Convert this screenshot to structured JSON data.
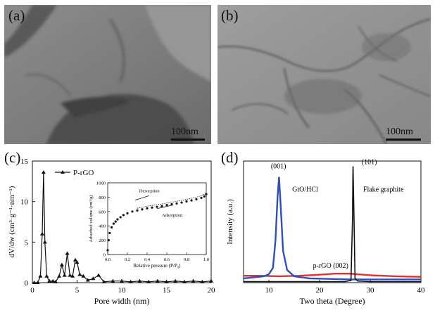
{
  "panels": {
    "a": {
      "label": "(a)",
      "scale_bar": "100nm"
    },
    "b": {
      "label": "(b)",
      "scale_bar": "100nm"
    },
    "c": {
      "label": "(c)"
    },
    "d": {
      "label": "(d)"
    }
  },
  "colors": {
    "tem_bg": "#8a8a8a",
    "gto": "#2f4fbf",
    "prgo": "#e03030",
    "graphite": "#111111"
  },
  "chart_data": [
    {
      "type": "line",
      "xlabel": "Pore width (nm)",
      "ylabel": "dV/dw (cm³·g⁻¹·nm⁻¹)",
      "xlim": [
        0,
        20
      ],
      "ylim": [
        0,
        15
      ],
      "xticks": [
        0,
        5,
        10,
        15,
        20
      ],
      "yticks": [
        0,
        5,
        10,
        15
      ],
      "grid": false,
      "legend_position": "top-left",
      "series": [
        {
          "name": "P-rGO",
          "x": [
            0.2,
            0.6,
            0.9,
            1.1,
            1.25,
            1.4,
            1.6,
            1.9,
            2.3,
            2.6,
            3.0,
            3.3,
            3.6,
            3.9,
            4.2,
            4.5,
            4.8,
            5.0,
            5.3,
            5.7,
            6.2,
            6.8,
            7.4,
            8.0,
            9.0,
            10.0,
            11.0,
            12.0,
            13.0,
            14.0,
            15.0,
            16.0,
            17.0,
            18.0,
            19.0,
            20.0
          ],
          "y": [
            0.0,
            0.0,
            0.8,
            6.0,
            13.6,
            5.0,
            0.8,
            0.2,
            0.2,
            0.1,
            0.8,
            2.2,
            0.9,
            3.6,
            0.9,
            0.8,
            2.8,
            2.5,
            1.0,
            0.8,
            0.3,
            0.5,
            0.9,
            0.1,
            0.2,
            0.2,
            0.1,
            0.2,
            0.1,
            0.2,
            0.1,
            0.2,
            0.1,
            0.2,
            0.1,
            0.2
          ]
        }
      ],
      "inset": {
        "type": "scatter",
        "xlabel": "Relative pressure (P/P₀)",
        "ylabel": "Adsorbed volume (cm³/g)",
        "xlim": [
          0,
          1.0
        ],
        "ylim": [
          0,
          1000
        ],
        "xticks": [
          0.0,
          0.2,
          0.4,
          0.6,
          0.8,
          1.0
        ],
        "yticks": [
          0,
          200,
          400,
          600,
          800,
          1000
        ],
        "annotations": [
          "Desorption",
          "Adsorption"
        ],
        "series": [
          {
            "name": "Adsorption",
            "x": [
              0.0,
              0.01,
              0.02,
              0.04,
              0.06,
              0.08,
              0.1,
              0.13,
              0.16,
              0.2,
              0.25,
              0.3,
              0.35,
              0.4,
              0.45,
              0.5,
              0.55,
              0.6,
              0.65,
              0.7,
              0.75,
              0.8,
              0.85,
              0.9,
              0.95,
              0.98,
              1.0
            ],
            "y": [
              60,
              200,
              300,
              380,
              430,
              460,
              490,
              520,
              550,
              575,
              600,
              615,
              630,
              645,
              655,
              665,
              675,
              690,
              700,
              712,
              725,
              740,
              755,
              770,
              790,
              810,
              840
            ]
          }
        ]
      }
    },
    {
      "type": "line",
      "xlabel": "Two theta (Degree)",
      "ylabel": "Intensity (a.u.)",
      "xlim": [
        5,
        40
      ],
      "xticks": [
        10,
        20,
        30,
        40
      ],
      "yticks": [],
      "grid": false,
      "annotations": [
        "(001)",
        "(101)",
        "GtO/HCl",
        "Flake graphite",
        "p-rGO (002)"
      ],
      "series": [
        {
          "name": "GtO/HCl",
          "x": [
            5,
            7,
            9,
            10,
            10.8,
            11.3,
            11.7,
            12.0,
            12.3,
            12.8,
            13.6,
            15,
            18,
            22,
            26,
            30,
            35,
            40
          ],
          "y": [
            4,
            5,
            6,
            8,
            14,
            40,
            80,
            100,
            75,
            30,
            12,
            6,
            4,
            3.5,
            3,
            3,
            3,
            3
          ]
        },
        {
          "name": "Flake graphite",
          "x": [
            5,
            10,
            20,
            25,
            26.2,
            26.5,
            26.6,
            26.8,
            27.0,
            27.5,
            30,
            35,
            40
          ],
          "y": [
            1,
            1,
            1,
            1,
            2,
            60,
            110,
            60,
            4,
            1.5,
            1,
            1,
            1
          ]
        },
        {
          "name": "p-rGO (002)",
          "x": [
            5,
            8,
            12,
            16,
            20,
            23,
            26,
            30,
            35,
            40
          ],
          "y": [
            6.5,
            6.5,
            6.0,
            6.5,
            7.5,
            8.5,
            8.5,
            7.0,
            6.0,
            5.5
          ]
        }
      ]
    }
  ]
}
